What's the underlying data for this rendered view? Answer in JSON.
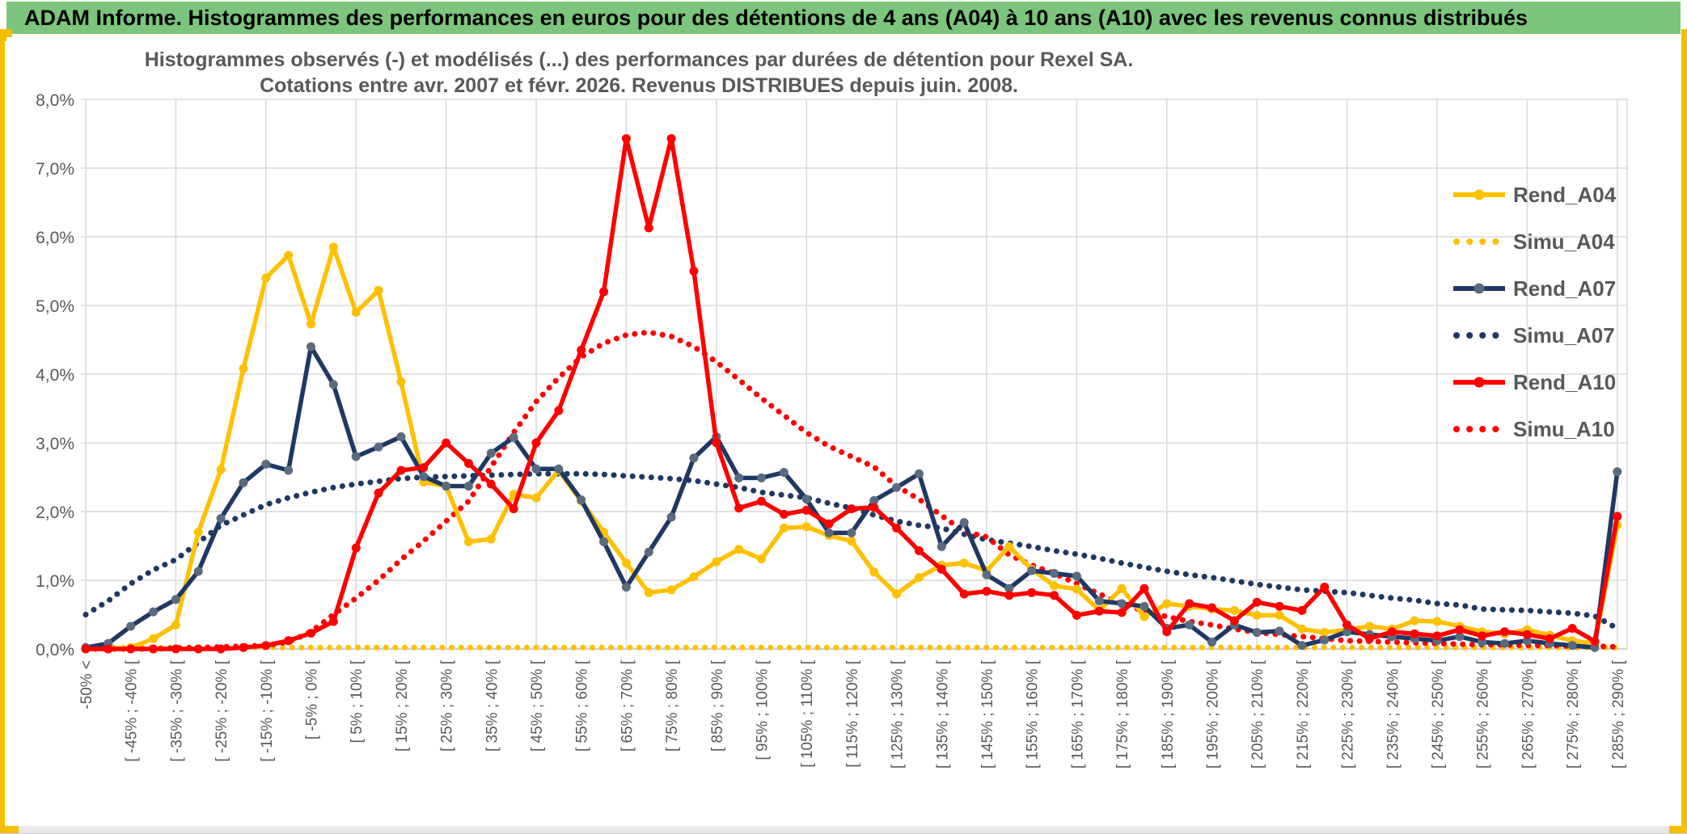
{
  "header": {
    "title": "ADAM Informe. Histogrammes des performances en euros pour des détentions de 4 ans (A04) à 10 ans (A10) avec les revenus connus distribués"
  },
  "colors": {
    "header_green": "#7CC57C",
    "accent_gold": "#F5BE00",
    "series_gold": "#FFC000",
    "series_navy": "#1F3864",
    "series_navy_marker": "#5A6B7F",
    "series_red": "#FF0000",
    "gridline": "#D9D9D9",
    "axis_line": "#BFBFBF",
    "text_gray": "#595959"
  },
  "chart_data": {
    "type": "line",
    "title_line1": "Histogrammes observés (-) et modélisés (...) des performances par durées de détention pour Rexel SA.",
    "title_line2": "Cotations entre avr. 2007 et févr. 2026. Revenus DISTRIBUES depuis juin. 2008.",
    "ylabel": "",
    "xlabel": "",
    "ylim": [
      0,
      8
    ],
    "grid": true,
    "legend_position": "right",
    "ytick_labels": [
      "0,0%",
      "1,0%",
      "2,0%",
      "3,0%",
      "4,0%",
      "5,0%",
      "6,0%",
      "7,0%",
      "8,0%"
    ],
    "n_bins": 69,
    "xtick_every": 2,
    "xtick_labels": [
      "-50% <",
      "[ -45% ; -40% [",
      "[ -35% ; -30% [",
      "[ -25% ; -20% [",
      "[ -15% ; -10% [",
      "[ -5% ; 0% [",
      "[ 5% ; 10% [",
      "[ 15% ; 20% [",
      "[ 25% ; 30% [",
      "[ 35% ; 40% [",
      "[ 45% ; 50% [",
      "[ 55% ; 60% [",
      "[ 65% ; 70% [",
      "[ 75% ; 80% [",
      "[ 85% ; 90% [",
      "[ 95% ; 100% [",
      "[ 105% ; 110% [",
      "[ 115% ; 120% [",
      "[ 125% ; 130% [",
      "[ 135% ; 140% [",
      "[ 145% ; 150% [",
      "[ 155% ; 160% [",
      "[ 165% ; 170% [",
      "[ 175% ; 180% [",
      "[ 185% ; 190% [",
      "[ 195% ; 200% [",
      "[ 205% ; 210% [",
      "[ 215% ; 220% [",
      "[ 225% ; 230% [",
      "[ 235% ; 240% [",
      "[ 245% ; 250% [",
      "[ 255% ; 260% [",
      "[ 265% ; 270% [",
      "[ 275% ; 280% [",
      "[ 285% ; 290% ["
    ],
    "series": [
      {
        "name": "Simu_A04",
        "style": "dotted",
        "color": "#FFC000",
        "values": [
          0.02,
          0.02,
          0.02,
          0.02,
          0.02,
          0.02,
          0.02,
          0.02,
          0.02,
          0.02,
          0.02,
          0.02,
          0.02,
          0.02,
          0.02,
          0.02,
          0.02,
          0.02,
          0.02,
          0.02,
          0.02,
          0.02,
          0.02,
          0.02,
          0.02,
          0.02,
          0.02,
          0.02,
          0.02,
          0.02,
          0.02,
          0.02,
          0.02,
          0.02,
          0.02,
          0.02,
          0.02,
          0.02,
          0.02,
          0.02,
          0.02,
          0.02,
          0.02,
          0.02,
          0.02,
          0.02,
          0.02,
          0.02,
          0.02,
          0.02,
          0.02,
          0.02,
          0.02,
          0.02,
          0.02,
          0.02,
          0.02,
          0.02,
          0.02,
          0.02,
          0.02,
          0.02,
          0.02,
          0.02,
          0.02,
          0.02,
          0.02,
          0.02,
          0.02
        ]
      },
      {
        "name": "Simu_A07",
        "style": "dotted",
        "color": "#1F3864",
        "values": [
          0.5,
          0.7,
          0.95,
          1.15,
          1.3,
          1.55,
          1.8,
          1.95,
          2.1,
          2.2,
          2.28,
          2.35,
          2.4,
          2.44,
          2.48,
          2.5,
          2.51,
          2.52,
          2.53,
          2.54,
          2.55,
          2.55,
          2.55,
          2.54,
          2.52,
          2.5,
          2.48,
          2.45,
          2.4,
          2.35,
          2.28,
          2.24,
          2.2,
          2.12,
          2.05,
          1.95,
          1.86,
          1.8,
          1.76,
          1.67,
          1.59,
          1.54,
          1.49,
          1.43,
          1.38,
          1.32,
          1.25,
          1.19,
          1.13,
          1.08,
          1.04,
          0.99,
          0.94,
          0.9,
          0.86,
          0.84,
          0.82,
          0.78,
          0.74,
          0.71,
          0.66,
          0.64,
          0.58,
          0.57,
          0.56,
          0.54,
          0.52,
          0.48,
          0.3
        ]
      },
      {
        "name": "Simu_A10",
        "style": "dotted",
        "color": "#FF0000",
        "values": [
          0,
          0,
          0,
          0,
          0.01,
          0.02,
          0.03,
          0.04,
          0.05,
          0.1,
          0.25,
          0.5,
          0.74,
          1.0,
          1.3,
          1.57,
          1.86,
          2.15,
          2.65,
          3.15,
          3.6,
          3.95,
          4.25,
          4.45,
          4.57,
          4.61,
          4.55,
          4.4,
          4.18,
          3.92,
          3.65,
          3.4,
          3.15,
          2.95,
          2.8,
          2.65,
          2.37,
          2.18,
          1.94,
          1.71,
          1.63,
          1.37,
          1.22,
          1.1,
          0.95,
          0.8,
          0.66,
          0.55,
          0.47,
          0.4,
          0.35,
          0.29,
          0.24,
          0.21,
          0.18,
          0.15,
          0.12,
          0.11,
          0.1,
          0.09,
          0.08,
          0.07,
          0.06,
          0.06,
          0.05,
          0.05,
          0.04,
          0.04,
          0.03
        ]
      },
      {
        "name": "Rend_A04",
        "style": "solid",
        "color": "#FFC000",
        "marker": "#FFC000",
        "values": [
          0,
          0,
          0.02,
          0.15,
          0.35,
          1.7,
          2.61,
          4.08,
          5.4,
          5.73,
          4.73,
          5.85,
          4.9,
          5.22,
          3.89,
          2.43,
          2.37,
          1.56,
          1.6,
          2.25,
          2.2,
          2.6,
          2.15,
          1.7,
          1.25,
          0.82,
          0.86,
          1.05,
          1.27,
          1.45,
          1.31,
          1.76,
          1.78,
          1.65,
          1.57,
          1.12,
          0.8,
          1.04,
          1.22,
          1.25,
          1.14,
          1.49,
          1.16,
          0.92,
          0.87,
          0.56,
          0.88,
          0.47,
          0.66,
          0.62,
          0.58,
          0.56,
          0.49,
          0.49,
          0.29,
          0.24,
          0.28,
          0.33,
          0.29,
          0.41,
          0.4,
          0.33,
          0.25,
          0.22,
          0.28,
          0.2,
          0.12,
          0.08,
          1.8
        ]
      },
      {
        "name": "Rend_A07",
        "style": "solid",
        "color": "#1F3864",
        "marker": "#5A6B7F",
        "values": [
          0.02,
          0.08,
          0.33,
          0.54,
          0.72,
          1.13,
          1.9,
          2.42,
          2.69,
          2.6,
          4.4,
          3.85,
          2.8,
          2.94,
          3.09,
          2.51,
          2.37,
          2.37,
          2.85,
          3.08,
          2.62,
          2.62,
          2.17,
          1.56,
          0.9,
          1.41,
          1.92,
          2.78,
          3.09,
          2.49,
          2.49,
          2.57,
          2.18,
          1.69,
          1.69,
          2.16,
          2.35,
          2.55,
          1.49,
          1.84,
          1.08,
          0.88,
          1.14,
          1.1,
          1.06,
          0.7,
          0.66,
          0.62,
          0.3,
          0.35,
          0.1,
          0.35,
          0.24,
          0.26,
          0.05,
          0.13,
          0.25,
          0.21,
          0.18,
          0.15,
          0.12,
          0.18,
          0.1,
          0.08,
          0.12,
          0.08,
          0.05,
          0.02,
          2.58
        ]
      },
      {
        "name": "Rend_A10",
        "style": "solid",
        "color": "#FF0000",
        "marker": "#FF0000",
        "values": [
          0,
          0,
          0,
          0,
          0,
          0,
          0,
          0.02,
          0.05,
          0.12,
          0.23,
          0.4,
          1.47,
          2.27,
          2.6,
          2.64,
          3.0,
          2.7,
          2.4,
          2.04,
          3.0,
          3.47,
          4.35,
          5.2,
          7.43,
          6.13,
          7.43,
          5.5,
          3.0,
          2.05,
          2.15,
          1.96,
          2.02,
          1.82,
          2.04,
          2.06,
          1.76,
          1.43,
          1.16,
          0.8,
          0.84,
          0.78,
          0.82,
          0.78,
          0.49,
          0.55,
          0.53,
          0.88,
          0.25,
          0.66,
          0.6,
          0.41,
          0.68,
          0.62,
          0.56,
          0.9,
          0.35,
          0.15,
          0.25,
          0.22,
          0.19,
          0.28,
          0.19,
          0.25,
          0.21,
          0.15,
          0.3,
          0.11,
          1.93
        ]
      }
    ],
    "legend": [
      {
        "label": "Rend_A04",
        "style": "solid",
        "color": "#FFC000",
        "marker": "#FFC000"
      },
      {
        "label": "Simu_A04",
        "style": "dotted",
        "color": "#FFC000"
      },
      {
        "label": "Rend_A07",
        "style": "solid",
        "color": "#1F3864",
        "marker": "#5A6B7F"
      },
      {
        "label": "Simu_A07",
        "style": "dotted",
        "color": "#1F3864"
      },
      {
        "label": "Rend_A10",
        "style": "solid",
        "color": "#FF0000",
        "marker": "#FF0000"
      },
      {
        "label": "Simu_A10",
        "style": "dotted",
        "color": "#FF0000"
      }
    ]
  }
}
